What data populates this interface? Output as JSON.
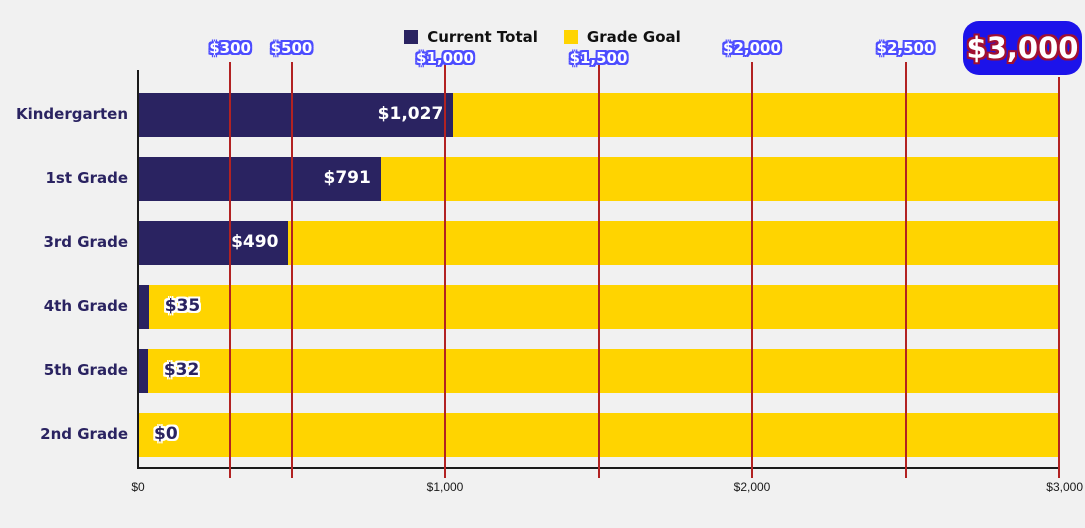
{
  "chart_data": {
    "type": "bar",
    "orientation": "horizontal",
    "stacked": true,
    "title": "",
    "categories": [
      "Kindergarten",
      "1st Grade",
      "3rd Grade",
      "4th Grade",
      "5th Grade",
      "2nd Grade"
    ],
    "series": [
      {
        "name": "Current Total",
        "color": "#2a2361",
        "values": [
          1027,
          791,
          490,
          35,
          32,
          0
        ]
      },
      {
        "name": "Grade Goal",
        "color": "#ffd400",
        "values": [
          1973,
          2209,
          2510,
          2965,
          2968,
          3000
        ]
      }
    ],
    "value_labels": [
      "$1,027",
      "$791",
      "$490",
      "$35",
      "$32",
      "$0"
    ],
    "goal_per_grade": 3000,
    "xlim": [
      0,
      3000
    ],
    "x_axis_ticks": [
      {
        "value": 0,
        "label": "$0"
      },
      {
        "value": 1000,
        "label": "$1,000"
      },
      {
        "value": 2000,
        "label": "$2,000"
      },
      {
        "value": 3000,
        "label": "$3,000"
      }
    ],
    "gridlines": [
      {
        "value": 300,
        "label": "$300",
        "row": 1,
        "highlight": false
      },
      {
        "value": 500,
        "label": "$500",
        "row": 1,
        "highlight": false
      },
      {
        "value": 1000,
        "label": "$1,000",
        "row": 2,
        "highlight": false
      },
      {
        "value": 1500,
        "label": "$1,500",
        "row": 2,
        "highlight": false
      },
      {
        "value": 2000,
        "label": "$2,000",
        "row": 1,
        "highlight": false
      },
      {
        "value": 2500,
        "label": "$2,500",
        "row": 1,
        "highlight": false
      },
      {
        "value": 3000,
        "label": "$3,000",
        "row": 1,
        "highlight": true
      }
    ],
    "legend": [
      {
        "label": "Current Total",
        "color": "#2a2361"
      },
      {
        "label": "Grade Goal",
        "color": "#ffd400"
      }
    ],
    "legend_position": "top-center",
    "grid": true,
    "colors": {
      "current_total": "#2a2361",
      "grade_goal": "#ffd400",
      "gridline": "#b22222",
      "goal_badge_background": "#1c13ea",
      "goal_badge_outline": "#a01030",
      "gridline_label_fill": "#ffffff",
      "gridline_label_outline": "#4d4dff",
      "background": "#f1f1f1",
      "axis": "#1a1a1a"
    }
  }
}
